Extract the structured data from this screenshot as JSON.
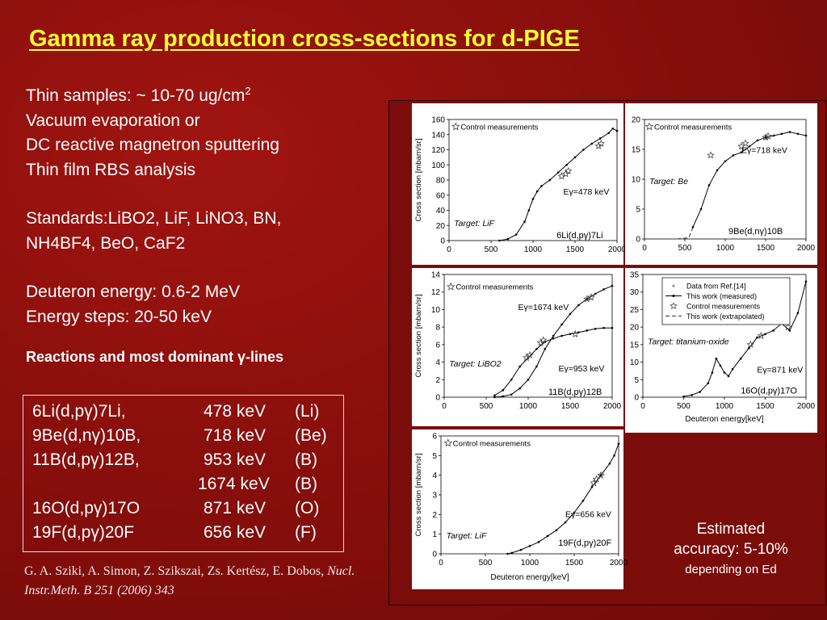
{
  "title": "Gamma ray production cross-sections for d-PIGE",
  "info": {
    "samples_prefix": "Thin samples: ~ 10-70 ug/cm",
    "samples_sup": "2",
    "vacuum": "Vacuum evaporation or",
    "dc": "DC reactive magnetron sputtering",
    "rbs": "Thin film RBS analysis",
    "standards_line1": "Standards:LiBO2, LiF, LiNO3, BN,",
    "standards_line2": "NH4BF4, BeO, CaF2",
    "deuteron": "Deuteron energy: 0.6-2 MeV",
    "steps": "Energy steps: 20-50 keV"
  },
  "reactions_heading": "Reactions and most dominant γ-lines",
  "reactions": [
    {
      "reaction": "6Li(d,pγ)7Li,",
      "energy": "478 keV",
      "element": "(Li)"
    },
    {
      "reaction": "9Be(d,nγ)10B,",
      "energy": "718 keV",
      "element": "(Be)"
    },
    {
      "reaction": "11B(d,pγ)12B,",
      "energy": "953 keV",
      "element": "(B)"
    },
    {
      "reaction": "",
      "energy": "1674 keV",
      "element": "(B)"
    },
    {
      "reaction": "16O(d,pγ)17O",
      "energy": "871 keV",
      "element": "(O)"
    },
    {
      "reaction": "19F(d,pγ)20F",
      "energy": "656 keV",
      "element": "(F)"
    }
  ],
  "citation": {
    "authors": "G. A. Sziki, A. Simon, Z. Szikszai, Zs. Kertész, E. Dobos,",
    "journal": "Nucl. Instr.Meth. B 251 (2006) 343"
  },
  "accuracy": {
    "line1": "Estimated",
    "line2": "accuracy: 5-10%",
    "line3": "depending on Ed"
  },
  "legend": {
    "ref": "Data from Ref.[14]",
    "measured": "This work (measured)",
    "control": "Control measurements",
    "extrapolated": "This work (extrapolated)"
  },
  "colors": {
    "background": "#8a0f0c",
    "title": "#ffff33",
    "plot_bg": "#ffffff"
  },
  "chart_data": [
    {
      "type": "line",
      "target": "Target: LiF",
      "gamma_label": "Eγ=478 keV",
      "reaction_label": "6Li(d,pγ)7Li",
      "control_label": "Control measurements",
      "xlabel": "",
      "ylabel": "Cross section [mbarn/sr]",
      "xlim": [
        0,
        2000
      ],
      "ylim": [
        0,
        160
      ],
      "xticks": [
        0,
        500,
        1000,
        1500,
        2000
      ],
      "yticks": [
        0,
        20,
        40,
        60,
        80,
        100,
        120,
        140,
        160
      ],
      "series": [
        {
          "x": [
            600,
            700,
            800,
            900,
            950,
            1000,
            1050,
            1100,
            1200,
            1300,
            1400,
            1500,
            1600,
            1700,
            1800,
            1900,
            1950,
            2000
          ],
          "y": [
            0,
            2,
            8,
            25,
            40,
            55,
            65,
            72,
            80,
            90,
            100,
            110,
            120,
            128,
            135,
            142,
            148,
            145
          ]
        }
      ],
      "controls": {
        "x": [
          1340,
          1390,
          1420,
          1780,
          1810
        ],
        "y": [
          85,
          88,
          92,
          125,
          128
        ]
      }
    },
    {
      "type": "line",
      "target": "Target: Be",
      "gamma_label": "Eγ=718 keV",
      "reaction_label": "9Be(d,nγ)10B",
      "control_label": "Control measurements",
      "xlabel": "",
      "ylabel": "",
      "xlim": [
        0,
        2000
      ],
      "ylim": [
        0,
        20
      ],
      "xticks": [
        0,
        500,
        1000,
        1500,
        2000
      ],
      "yticks": [
        0,
        5,
        10,
        15,
        20
      ],
      "extrapolated": {
        "x": [
          0,
          200,
          400,
          550,
          600
        ],
        "y": [
          0,
          0,
          0,
          0.2,
          2
        ]
      },
      "series": [
        {
          "x": [
            600,
            700,
            800,
            900,
            1000,
            1100,
            1200,
            1300,
            1400,
            1500,
            1600,
            1700,
            1800,
            1900,
            2000
          ],
          "y": [
            2,
            5,
            9,
            11.5,
            13,
            14,
            14.5,
            15.5,
            16.5,
            17,
            17.3,
            17.6,
            17.9,
            17.6,
            17.3
          ]
        }
      ],
      "controls": {
        "x": [
          820,
          1200,
          1250,
          1500,
          1530
        ],
        "y": [
          14,
          15.5,
          16,
          17,
          17.2
        ]
      }
    },
    {
      "type": "line",
      "target": "Target: LiBO2",
      "gamma_label": "Eγ=1674 keV",
      "gamma_label_2": "Eγ=953 keV",
      "reaction_label": "11B(d,pγ)12B",
      "control_label": "Control measurements",
      "xlabel": "",
      "ylabel": "Cross section [mbarn/sr]",
      "xlim": [
        0,
        2000
      ],
      "ylim": [
        0,
        14
      ],
      "xticks": [
        0,
        500,
        1000,
        1500,
        2000
      ],
      "yticks": [
        0,
        2,
        4,
        6,
        8,
        10,
        12,
        14
      ],
      "series": [
        {
          "x": [
            600,
            700,
            800,
            900,
            1000,
            1100,
            1200,
            1300,
            1400,
            1500,
            1600,
            1700,
            1800,
            1900,
            2000
          ],
          "y": [
            0,
            0.1,
            0.3,
            1.0,
            2.0,
            3.5,
            5.5,
            7.0,
            8.3,
            9.5,
            10.5,
            11.2,
            11.8,
            12.3,
            12.7
          ]
        },
        {
          "x": [
            600,
            700,
            800,
            900,
            1000,
            1100,
            1200,
            1300,
            1400,
            1500,
            1600,
            1700,
            1800,
            1900,
            2000
          ],
          "y": [
            0.2,
            0.8,
            2.0,
            3.5,
            4.5,
            5.5,
            6.3,
            6.7,
            7.0,
            7.2,
            7.4,
            7.6,
            7.8,
            7.9,
            7.9
          ]
        }
      ],
      "controls": {
        "x": [
          1150,
          1180,
          1700,
          1750,
          980,
          1020,
          1560
        ],
        "y": [
          6.2,
          6.5,
          11.2,
          11.4,
          4.5,
          4.8,
          7.2
        ]
      }
    },
    {
      "type": "line",
      "target": "Target: titanium-oxide",
      "gamma_label": "Eγ=871 keV",
      "reaction_label": "16O(d,pγ)17O",
      "xlabel": "Deuteron energy[keV]",
      "ylabel": "",
      "xlim": [
        0,
        2000
      ],
      "ylim": [
        0,
        35
      ],
      "xticks": [
        0,
        500,
        1000,
        1500,
        2000
      ],
      "yticks": [
        0,
        5,
        10,
        15,
        20,
        25,
        30,
        35
      ],
      "series": [
        {
          "x": [
            500,
            600,
            700,
            800,
            850,
            900,
            950,
            1000,
            1050,
            1100,
            1200,
            1300,
            1400,
            1500,
            1600,
            1700,
            1800,
            1900,
            2000
          ],
          "y": [
            0.2,
            0.6,
            1.5,
            4,
            7,
            11,
            9,
            7,
            6,
            8,
            11,
            14,
            17,
            18,
            19,
            21,
            19,
            24,
            33
          ]
        }
      ],
      "controls": {
        "x": [
          1320,
          1450,
          1780
        ],
        "y": [
          15,
          17.5,
          20
        ]
      }
    },
    {
      "type": "line",
      "target": "Target: LiF",
      "gamma_label": "Eγ=656 keV",
      "reaction_label": "19F(d,pγ)20F",
      "control_label": "Control measurements",
      "xlabel": "Deuteron energy[keV]",
      "ylabel": "Cross section [mbarn/sr]",
      "xlim": [
        0,
        2000
      ],
      "ylim": [
        0,
        6
      ],
      "xticks": [
        0,
        500,
        1000,
        1500,
        2000
      ],
      "yticks": [
        0,
        1,
        2,
        3,
        4,
        5,
        6
      ],
      "series": [
        {
          "x": [
            750,
            800,
            900,
            1000,
            1100,
            1200,
            1300,
            1400,
            1500,
            1600,
            1700,
            1800,
            1900,
            1950,
            2000
          ],
          "y": [
            0,
            0.05,
            0.2,
            0.4,
            0.6,
            0.9,
            1.2,
            1.6,
            2.1,
            2.7,
            3.4,
            4.0,
            4.6,
            5.0,
            5.6
          ]
        }
      ],
      "controls": {
        "x": [
          1720,
          1750,
          1800
        ],
        "y": [
          3.6,
          3.8,
          4.0
        ]
      }
    }
  ]
}
